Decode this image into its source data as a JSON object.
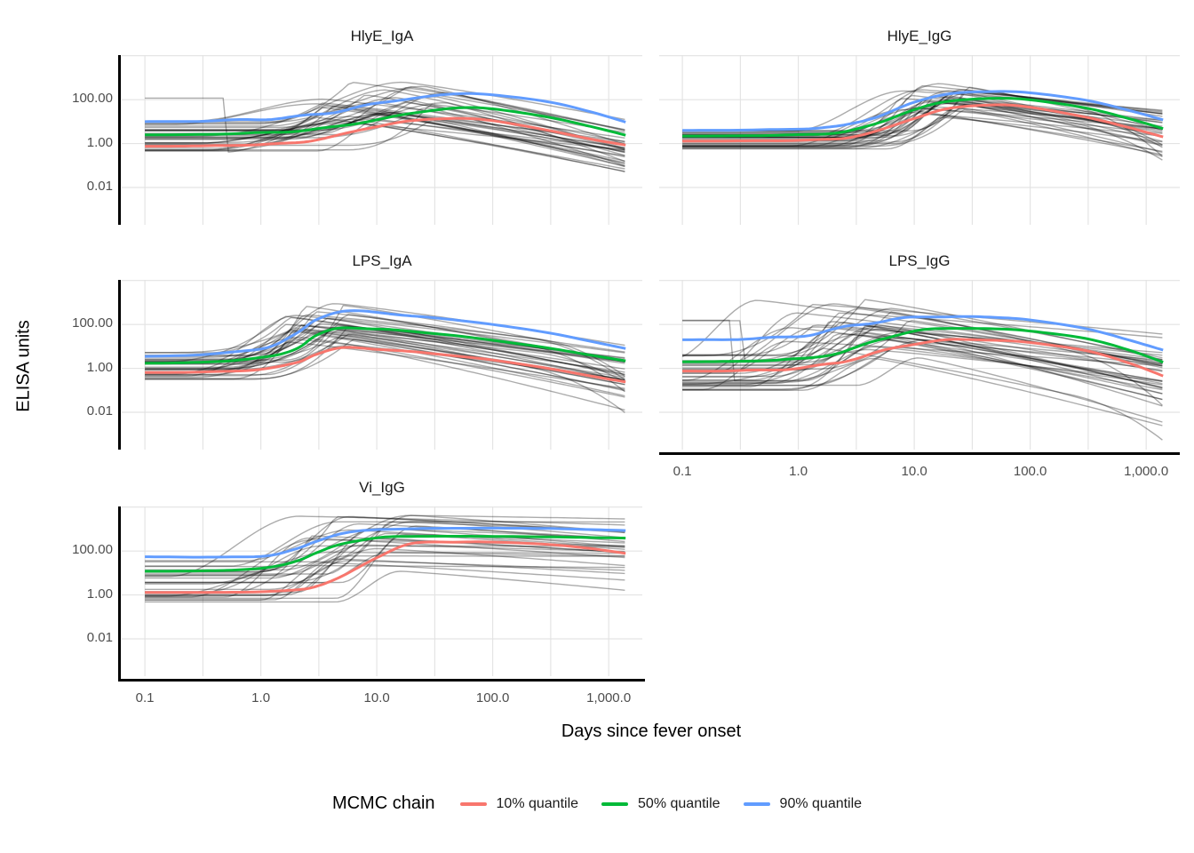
{
  "chart_data": {
    "type": "line",
    "xlabel": "Days since fever onset",
    "ylabel": "ELISA units",
    "x_scale": "log10",
    "y_scale": "log10",
    "xlim": [
      0.063,
      1950
    ],
    "ylim": [
      0.0002,
      10700
    ],
    "grid": "on",
    "x_tick_values": [
      0.1,
      1,
      10,
      100,
      1000
    ],
    "x_tick_labels": [
      "0.1",
      "1.0",
      "10.0",
      "100.0",
      "1,000.0"
    ],
    "y_tick_values": [
      100,
      1,
      0.01
    ],
    "y_tick_labels": [
      "100.00",
      "1.00",
      "0.01"
    ],
    "gridline_color": "#e3e3e3",
    "posterior_draw_color": "rgba(0,0,0,0.33)",
    "legend": {
      "title": "MCMC chain",
      "position": "bottom",
      "entries": [
        {
          "label": "10% quantile",
          "color": "#F8766D"
        },
        {
          "label": "50% quantile",
          "color": "#00BA38"
        },
        {
          "label": "90% quantile",
          "color": "#619CFF"
        }
      ]
    },
    "days": [
      0.1,
      0.3,
      1,
      2,
      3,
      5,
      10,
      20,
      50,
      100,
      300,
      700,
      1400
    ],
    "facets": [
      {
        "title": "HlyE_IgA",
        "row": 0,
        "col": 0,
        "series": [
          {
            "name": "10% quantile",
            "color": "#F8766D",
            "wiggle": 0.02,
            "values": [
              0.75,
              0.78,
              0.9,
              1.1,
              1.5,
              2.6,
              6,
              11,
              14,
              11,
              4,
              1.6,
              0.85
            ]
          },
          {
            "name": "50% quantile",
            "color": "#00BA38",
            "wiggle": 0.025,
            "values": [
              2.5,
              2.6,
              3.1,
              3.7,
              4.5,
              6.5,
              12,
              24,
              42,
              38,
              16,
              6,
              2.4
            ]
          },
          {
            "name": "90% quantile",
            "color": "#619CFF",
            "wiggle": 0.055,
            "values": [
              10,
              10.5,
              13,
              16,
              21,
              33,
              65,
              115,
              185,
              165,
              80,
              28,
              9.5
            ]
          }
        ],
        "posterior_draws": {
          "count": 34,
          "seed": 7,
          "log10_start": [
            -0.45,
            1.05
          ],
          "log10_peak_gain": [
            0.9,
            2.1
          ],
          "log10_peak_day": [
            0.45,
            1.6
          ],
          "log10_decay_drop": [
            1.2,
            2.7
          ],
          "rise_decades": [
            0.6,
            1.3
          ],
          "sharp_peak_frac": 0.45,
          "cliff_lines": 1,
          "late_plunge_frac": 0.08,
          "outliers": []
        }
      },
      {
        "title": "HlyE_IgG",
        "row": 0,
        "col": 1,
        "series": [
          {
            "name": "10% quantile",
            "color": "#F8766D",
            "wiggle": 0.015,
            "values": [
              1.3,
              1.32,
              1.4,
              1.6,
              2.1,
              4,
              14,
              40,
              58,
              45,
              16,
              5.5,
              2.0
            ]
          },
          {
            "name": "50% quantile",
            "color": "#00BA38",
            "wiggle": 0.015,
            "values": [
              2.2,
              2.25,
              2.5,
              3.0,
              4.2,
              9,
              35,
              85,
              115,
              98,
              42,
              14,
              4.8
            ]
          },
          {
            "name": "90% quantile",
            "color": "#619CFF",
            "wiggle": 0.015,
            "values": [
              4.0,
              4.1,
              4.6,
              5.8,
              8.5,
              18,
              75,
              185,
              235,
              205,
              95,
              33,
              12
            ]
          }
        ],
        "posterior_draws": {
          "count": 34,
          "seed": 13,
          "log10_start": [
            -0.25,
            0.6
          ],
          "log10_peak_gain": [
            1.4,
            2.4
          ],
          "log10_peak_day": [
            0.85,
            1.5
          ],
          "log10_decay_drop": [
            0.8,
            2.2
          ],
          "rise_decades": [
            0.5,
            1.0
          ],
          "sharp_peak_frac": 0.35,
          "cliff_lines": 0,
          "late_plunge_frac": 0.1,
          "outliers": []
        }
      },
      {
        "title": "LPS_IgA",
        "row": 1,
        "col": 0,
        "series": [
          {
            "name": "10% quantile",
            "color": "#F8766D",
            "wiggle": 0.02,
            "values": [
              0.65,
              0.68,
              0.9,
              1.8,
              4.5,
              8.5,
              7.5,
              5.8,
              3.6,
              2.4,
              1.0,
              0.45,
              0.24
            ]
          },
          {
            "name": "50% quantile",
            "color": "#00BA38",
            "wiggle": 0.03,
            "values": [
              1.7,
              1.9,
              3.0,
              8,
              30,
              70,
              62,
              48,
              30,
              19,
              8.5,
              4.0,
              2.2
            ]
          },
          {
            "name": "90% quantile",
            "color": "#619CFF",
            "wiggle": 0.04,
            "values": [
              3.5,
              4.2,
              8,
              35,
              160,
              420,
              340,
              250,
              155,
              100,
              42,
              17,
              8
            ]
          }
        ],
        "posterior_draws": {
          "count": 34,
          "seed": 29,
          "log10_start": [
            -0.55,
            0.75
          ],
          "log10_peak_gain": [
            1.1,
            2.7
          ],
          "log10_peak_day": [
            0.2,
            0.8
          ],
          "log10_decay_drop": [
            1.4,
            3.1
          ],
          "rise_decades": [
            0.5,
            1.1
          ],
          "sharp_peak_frac": 0.6,
          "cliff_lines": 0,
          "late_plunge_frac": 0.12,
          "outliers": []
        }
      },
      {
        "title": "LPS_IgG",
        "row": 1,
        "col": 1,
        "series": [
          {
            "name": "10% quantile",
            "color": "#F8766D",
            "wiggle": 0.05,
            "values": [
              0.75,
              0.78,
              1.0,
              1.7,
              2.8,
              5.5,
              13,
              20,
              19,
              15,
              6.5,
              1.8,
              0.45
            ]
          },
          {
            "name": "50% quantile",
            "color": "#00BA38",
            "wiggle": 0.03,
            "values": [
              2.0,
              2.1,
              2.7,
              4.5,
              8,
              20,
              50,
              66,
              63,
              50,
              23,
              7,
              1.9
            ]
          },
          {
            "name": "90% quantile",
            "color": "#619CFF",
            "wiggle": 0.06,
            "values": [
              20,
              21,
              30,
              55,
              90,
              140,
              205,
              230,
              210,
              160,
              65,
              20,
              6.8
            ]
          }
        ],
        "posterior_draws": {
          "count": 36,
          "seed": 41,
          "log10_start": [
            -1.0,
            0.65
          ],
          "log10_peak_gain": [
            1.2,
            2.8
          ],
          "log10_peak_day": [
            -0.1,
            1.3
          ],
          "log10_decay_drop": [
            0.9,
            3.1
          ],
          "rise_decades": [
            0.5,
            1.2
          ],
          "sharp_peak_frac": 0.45,
          "cliff_lines": 2,
          "late_plunge_frac": 0.12,
          "outliers": [
            {
              "y0": 0.4,
              "tp": -0.35,
              "add": 2.7,
              "drop": 2.9,
              "rise": 0.75
            }
          ]
        }
      },
      {
        "title": "Vi_IgG",
        "row": 2,
        "col": 0,
        "series": [
          {
            "name": "10% quantile",
            "color": "#F8766D",
            "wiggle": 0.01,
            "values": [
              1.3,
              1.3,
              1.4,
              1.7,
              2.5,
              7,
              50,
              220,
              255,
              255,
              200,
              130,
              78
            ]
          },
          {
            "name": "50% quantile",
            "color": "#00BA38",
            "wiggle": 0.015,
            "values": [
              12,
              12.5,
              16,
              35,
              80,
              210,
              400,
              465,
              470,
              465,
              440,
              410,
              390
            ]
          },
          {
            "name": "90% quantile",
            "color": "#619CFF",
            "wiggle": 0.02,
            "values": [
              55,
              53,
              58,
              120,
              270,
              650,
              920,
              1040,
              1090,
              1100,
              1060,
              950,
              860
            ]
          }
        ],
        "posterior_draws": {
          "count": 30,
          "seed": 53,
          "log10_start": [
            -0.45,
            1.6
          ],
          "log10_peak_gain": [
            1.3,
            2.9
          ],
          "log10_peak_day": [
            0.3,
            1.4
          ],
          "log10_decay_drop": [
            0.0,
            0.9
          ],
          "rise_decades": [
            0.5,
            1.2
          ],
          "sharp_peak_frac": 0.1,
          "cliff_lines": 0,
          "late_plunge_frac": 0,
          "outliers": []
        }
      }
    ]
  }
}
